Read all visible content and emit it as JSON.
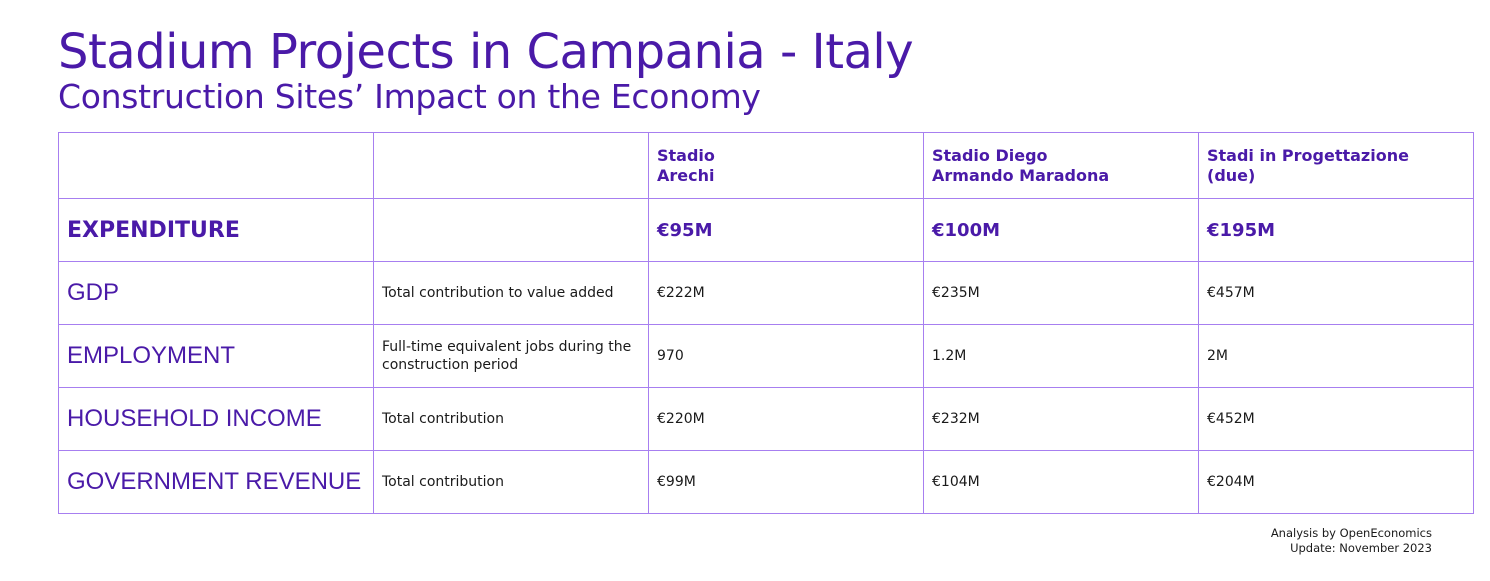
{
  "header": {
    "title": "Stadium Projects in Campania - Italy",
    "subtitle": "Construction Sites’ Impact on the Economy"
  },
  "table": {
    "columns": [
      "",
      "",
      "Stadio\nArechi",
      "Stadio Diego\nArmando Maradona",
      "Stadi in Progettazione\n(due)"
    ],
    "rows": [
      {
        "label": "EXPENDITURE",
        "description": "",
        "values": [
          "€95M",
          "€100M",
          "€195M"
        ]
      },
      {
        "label": "GDP",
        "description": "Total contribution to value added",
        "values": [
          "€222M",
          "€235M",
          "€457M"
        ]
      },
      {
        "label": "EMPLOYMENT",
        "description": "Full-time equivalent jobs during the construction period",
        "values": [
          "970",
          "1.2M",
          "2M"
        ]
      },
      {
        "label": "HOUSEHOLD INCOME",
        "description": "Total contribution",
        "values": [
          "€220M",
          "€232M",
          "€452M"
        ]
      },
      {
        "label": "GOVERNMENT REVENUE",
        "description": "Total contribution",
        "values": [
          "€99M",
          "€104M",
          "€204M"
        ]
      }
    ]
  },
  "footer": {
    "analysis": "Analysis by OpenEconomics",
    "update": "Update: November 2023"
  },
  "colors": {
    "accent": "#4a1aa8",
    "border": "#a77ff0",
    "text": "#1a1a1a",
    "background": "#ffffff"
  }
}
